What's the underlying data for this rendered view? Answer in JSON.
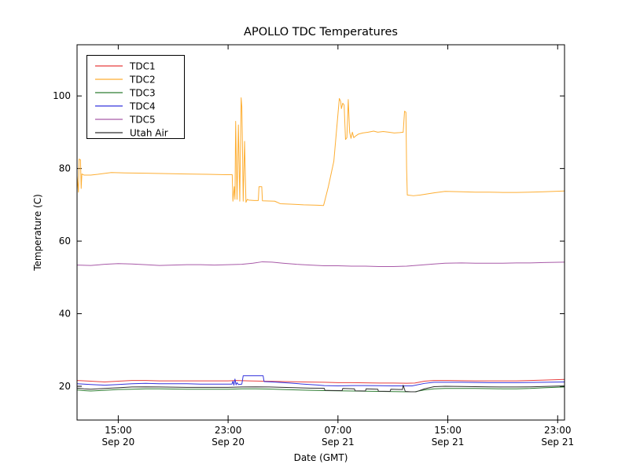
{
  "chart_data": {
    "type": "line",
    "title": "APOLLO TDC Temperatures",
    "xlabel": "Date (GMT)",
    "ylabel": "Temperature (C)",
    "grid": false,
    "legend_position": "upper left",
    "background_color": "#ffffff",
    "axis_color": "#000000",
    "x_unit": "hours since Sep 20 12:00 GMT",
    "xlim": [
      0,
      35.5
    ],
    "ylim": [
      10.7,
      114.1
    ],
    "yticks": [
      20,
      40,
      60,
      80,
      100
    ],
    "xticks": [
      {
        "hours": 3,
        "time": "15:00",
        "date": "Sep 20"
      },
      {
        "hours": 11,
        "time": "23:00",
        "date": "Sep 20"
      },
      {
        "hours": 19,
        "time": "07:00",
        "date": "Sep 21"
      },
      {
        "hours": 27,
        "time": "15:00",
        "date": "Sep 21"
      },
      {
        "hours": 35,
        "time": "23:00",
        "date": "Sep 21"
      }
    ],
    "series": [
      {
        "name": "TDC1",
        "color": "#e83e3e",
        "points": [
          [
            0,
            21.6
          ],
          [
            1,
            21.4
          ],
          [
            2,
            21.2
          ],
          [
            3,
            21.4
          ],
          [
            4,
            21.6
          ],
          [
            5,
            21.6
          ],
          [
            6,
            21.5
          ],
          [
            7,
            21.5
          ],
          [
            8,
            21.5
          ],
          [
            9,
            21.5
          ],
          [
            10,
            21.5
          ],
          [
            11,
            21.5
          ],
          [
            11.6,
            21.6
          ],
          [
            12.5,
            21.5
          ],
          [
            13.5,
            21.4
          ],
          [
            15,
            21.3
          ],
          [
            16.5,
            21.2
          ],
          [
            18,
            21.1
          ],
          [
            19,
            21.0
          ],
          [
            20,
            21.0
          ],
          [
            21,
            20.95
          ],
          [
            22,
            20.9
          ],
          [
            23,
            20.9
          ],
          [
            24,
            20.85
          ],
          [
            24.6,
            20.9
          ],
          [
            25.3,
            21.4
          ],
          [
            26,
            21.6
          ],
          [
            27,
            21.6
          ],
          [
            28,
            21.55
          ],
          [
            29,
            21.5
          ],
          [
            30,
            21.5
          ],
          [
            31,
            21.5
          ],
          [
            32,
            21.5
          ],
          [
            33,
            21.6
          ],
          [
            34,
            21.7
          ],
          [
            35.5,
            21.9
          ]
        ]
      },
      {
        "name": "TDC2",
        "color": "#fdae33",
        "points": [
          [
            0,
            78.0
          ],
          [
            0.1,
            73.5
          ],
          [
            0.15,
            82.6
          ],
          [
            0.25,
            82.4
          ],
          [
            0.3,
            74.5
          ],
          [
            0.35,
            78.5
          ],
          [
            0.5,
            78.2
          ],
          [
            1,
            78.2
          ],
          [
            1.5,
            78.4
          ],
          [
            2.5,
            78.9
          ],
          [
            3.5,
            78.8
          ],
          [
            5,
            78.7
          ],
          [
            6.5,
            78.6
          ],
          [
            8,
            78.5
          ],
          [
            9.5,
            78.4
          ],
          [
            10.8,
            78.3
          ],
          [
            11.3,
            78.3
          ],
          [
            11.35,
            71.0
          ],
          [
            11.45,
            75.0
          ],
          [
            11.5,
            71.5
          ],
          [
            11.55,
            93.0
          ],
          [
            11.65,
            71.5
          ],
          [
            11.75,
            92.0
          ],
          [
            11.85,
            71.0
          ],
          [
            11.95,
            99.5
          ],
          [
            12.0,
            97.0
          ],
          [
            12.05,
            85.0
          ],
          [
            12.1,
            71.0
          ],
          [
            12.2,
            87.5
          ],
          [
            12.3,
            70.7
          ],
          [
            12.4,
            71.5
          ],
          [
            12.5,
            71.3
          ],
          [
            12.9,
            71.2
          ],
          [
            13.2,
            71.2
          ],
          [
            13.25,
            75.0
          ],
          [
            13.45,
            75.0
          ],
          [
            13.5,
            71.1
          ],
          [
            14.4,
            71.0
          ],
          [
            14.8,
            70.3
          ],
          [
            15.5,
            70.2
          ],
          [
            16.5,
            70.0
          ],
          [
            17.5,
            69.9
          ],
          [
            17.95,
            69.8
          ],
          [
            18.0,
            70.5
          ],
          [
            18.3,
            75.0
          ],
          [
            18.7,
            82.0
          ],
          [
            19.0,
            95.0
          ],
          [
            19.1,
            99.3
          ],
          [
            19.2,
            98.5
          ],
          [
            19.25,
            96.5
          ],
          [
            19.35,
            98.0
          ],
          [
            19.45,
            97.5
          ],
          [
            19.55,
            88.0
          ],
          [
            19.65,
            88.5
          ],
          [
            19.75,
            99.0
          ],
          [
            19.85,
            90.0
          ],
          [
            19.95,
            88.3
          ],
          [
            20.05,
            90.0
          ],
          [
            20.15,
            88.5
          ],
          [
            20.3,
            89.0
          ],
          [
            20.5,
            89.5
          ],
          [
            20.8,
            89.8
          ],
          [
            21.2,
            90.0
          ],
          [
            21.6,
            90.3
          ],
          [
            21.9,
            90.0
          ],
          [
            22.3,
            90.2
          ],
          [
            22.7,
            90.0
          ],
          [
            23.1,
            89.8
          ],
          [
            23.5,
            89.9
          ],
          [
            23.75,
            90.0
          ],
          [
            23.85,
            95.8
          ],
          [
            23.95,
            95.5
          ],
          [
            24.0,
            80.0
          ],
          [
            24.05,
            72.7
          ],
          [
            24.5,
            72.5
          ],
          [
            25,
            72.7
          ],
          [
            26,
            73.3
          ],
          [
            26.8,
            73.7
          ],
          [
            28,
            73.6
          ],
          [
            29,
            73.5
          ],
          [
            30,
            73.5
          ],
          [
            31,
            73.4
          ],
          [
            32,
            73.4
          ],
          [
            33,
            73.5
          ],
          [
            34,
            73.6
          ],
          [
            35.5,
            73.8
          ]
        ]
      },
      {
        "name": "TDC3",
        "color": "#2e7d32",
        "points": [
          [
            0,
            19.0
          ],
          [
            0.5,
            18.8
          ],
          [
            1,
            18.7
          ],
          [
            2,
            18.9
          ],
          [
            3,
            19.1
          ],
          [
            4,
            19.2
          ],
          [
            5,
            19.3
          ],
          [
            6,
            19.3
          ],
          [
            7,
            19.25
          ],
          [
            8,
            19.2
          ],
          [
            9,
            19.2
          ],
          [
            10,
            19.2
          ],
          [
            11,
            19.2
          ],
          [
            12,
            19.3
          ],
          [
            13,
            19.3
          ],
          [
            14,
            19.25
          ],
          [
            15,
            19.1
          ],
          [
            16,
            19.0
          ],
          [
            17,
            18.9
          ],
          [
            18,
            18.8
          ],
          [
            19,
            18.75
          ],
          [
            20,
            18.7
          ],
          [
            21,
            18.65
          ],
          [
            22,
            18.6
          ],
          [
            23,
            18.55
          ],
          [
            24,
            18.5
          ],
          [
            24.6,
            18.5
          ],
          [
            25.3,
            19.0
          ],
          [
            26,
            19.3
          ],
          [
            26.8,
            19.4
          ],
          [
            28,
            19.4
          ],
          [
            29,
            19.4
          ],
          [
            30,
            19.35
          ],
          [
            31,
            19.3
          ],
          [
            32,
            19.3
          ],
          [
            33,
            19.4
          ],
          [
            34,
            19.6
          ],
          [
            35.5,
            19.8
          ]
        ]
      },
      {
        "name": "TDC4",
        "color": "#3434dd",
        "points": [
          [
            0,
            20.7
          ],
          [
            1,
            20.5
          ],
          [
            2,
            20.3
          ],
          [
            3,
            20.5
          ],
          [
            4,
            20.7
          ],
          [
            5,
            20.8
          ],
          [
            6,
            20.7
          ],
          [
            7,
            20.7
          ],
          [
            8,
            20.7
          ],
          [
            9,
            20.6
          ],
          [
            10,
            20.6
          ],
          [
            11,
            20.6
          ],
          [
            11.28,
            20.6
          ],
          [
            11.35,
            21.4
          ],
          [
            11.42,
            20.3
          ],
          [
            11.5,
            22.0
          ],
          [
            11.58,
            20.4
          ],
          [
            11.65,
            21.0
          ],
          [
            11.75,
            20.5
          ],
          [
            12.0,
            20.6
          ],
          [
            12.1,
            22.9
          ],
          [
            13.55,
            22.9
          ],
          [
            13.62,
            21.3
          ],
          [
            14.5,
            21.15
          ],
          [
            15.5,
            20.9
          ],
          [
            16.5,
            20.6
          ],
          [
            17.5,
            20.35
          ],
          [
            18.0,
            20.2
          ],
          [
            19,
            20.1
          ],
          [
            20,
            20.2
          ],
          [
            21,
            20.2
          ],
          [
            22,
            20.15
          ],
          [
            23,
            20.1
          ],
          [
            23.8,
            20.1
          ],
          [
            24.4,
            20.1
          ],
          [
            25.3,
            20.8
          ],
          [
            26,
            21.1
          ],
          [
            27,
            21.1
          ],
          [
            28,
            21.1
          ],
          [
            29,
            21.05
          ],
          [
            30,
            21.0
          ],
          [
            31,
            21.0
          ],
          [
            32,
            21.0
          ],
          [
            33,
            21.05
          ],
          [
            34,
            21.1
          ],
          [
            35.5,
            21.2
          ]
        ]
      },
      {
        "name": "TDC5",
        "color": "#a85aa8",
        "points": [
          [
            0,
            53.4
          ],
          [
            1,
            53.3
          ],
          [
            2,
            53.6
          ],
          [
            3,
            53.8
          ],
          [
            4,
            53.7
          ],
          [
            5,
            53.5
          ],
          [
            6,
            53.3
          ],
          [
            7,
            53.4
          ],
          [
            8,
            53.5
          ],
          [
            9,
            53.5
          ],
          [
            10,
            53.4
          ],
          [
            11,
            53.5
          ],
          [
            12,
            53.6
          ],
          [
            12.8,
            53.9
          ],
          [
            13.5,
            54.3
          ],
          [
            14.2,
            54.2
          ],
          [
            15,
            53.9
          ],
          [
            16,
            53.6
          ],
          [
            17,
            53.4
          ],
          [
            18,
            53.2
          ],
          [
            19,
            53.2
          ],
          [
            20,
            53.1
          ],
          [
            21,
            53.1
          ],
          [
            22,
            53.0
          ],
          [
            23,
            53.0
          ],
          [
            24,
            53.1
          ],
          [
            25,
            53.4
          ],
          [
            26,
            53.7
          ],
          [
            26.8,
            53.9
          ],
          [
            28,
            54.0
          ],
          [
            29,
            53.9
          ],
          [
            30,
            53.9
          ],
          [
            31,
            53.9
          ],
          [
            32,
            54.0
          ],
          [
            33,
            54.0
          ],
          [
            34,
            54.1
          ],
          [
            35.5,
            54.2
          ]
        ]
      },
      {
        "name": "Utah Air",
        "color": "#2e2e2e",
        "points": [
          [
            0,
            19.5
          ],
          [
            0.5,
            19.3
          ],
          [
            1,
            19.2
          ],
          [
            2,
            19.4
          ],
          [
            3,
            19.6
          ],
          [
            4,
            19.8
          ],
          [
            5,
            19.85
          ],
          [
            6,
            19.8
          ],
          [
            7,
            19.75
          ],
          [
            8,
            19.7
          ],
          [
            9,
            19.7
          ],
          [
            10,
            19.7
          ],
          [
            11,
            19.7
          ],
          [
            12,
            19.8
          ],
          [
            13,
            19.85
          ],
          [
            14,
            19.8
          ],
          [
            15,
            19.7
          ],
          [
            16,
            19.6
          ],
          [
            17,
            19.5
          ],
          [
            18,
            19.45
          ],
          [
            18.05,
            18.9
          ],
          [
            18.5,
            18.85
          ],
          [
            19.3,
            18.8
          ],
          [
            19.35,
            19.4
          ],
          [
            20.2,
            19.3
          ],
          [
            20.25,
            18.75
          ],
          [
            21.0,
            18.7
          ],
          [
            21.05,
            19.3
          ],
          [
            21.9,
            19.2
          ],
          [
            21.95,
            18.65
          ],
          [
            22.8,
            18.6
          ],
          [
            22.85,
            19.2
          ],
          [
            23.7,
            19.1
          ],
          [
            23.75,
            20.3
          ],
          [
            23.9,
            18.6
          ],
          [
            24.3,
            18.5
          ],
          [
            24.7,
            18.5
          ],
          [
            25.3,
            19.3
          ],
          [
            26,
            19.9
          ],
          [
            26.8,
            20.0
          ],
          [
            28,
            19.95
          ],
          [
            29,
            19.9
          ],
          [
            30,
            19.85
          ],
          [
            31,
            19.8
          ],
          [
            32,
            19.8
          ],
          [
            33,
            19.85
          ],
          [
            34,
            19.95
          ],
          [
            35.5,
            20.1
          ]
        ]
      }
    ]
  }
}
